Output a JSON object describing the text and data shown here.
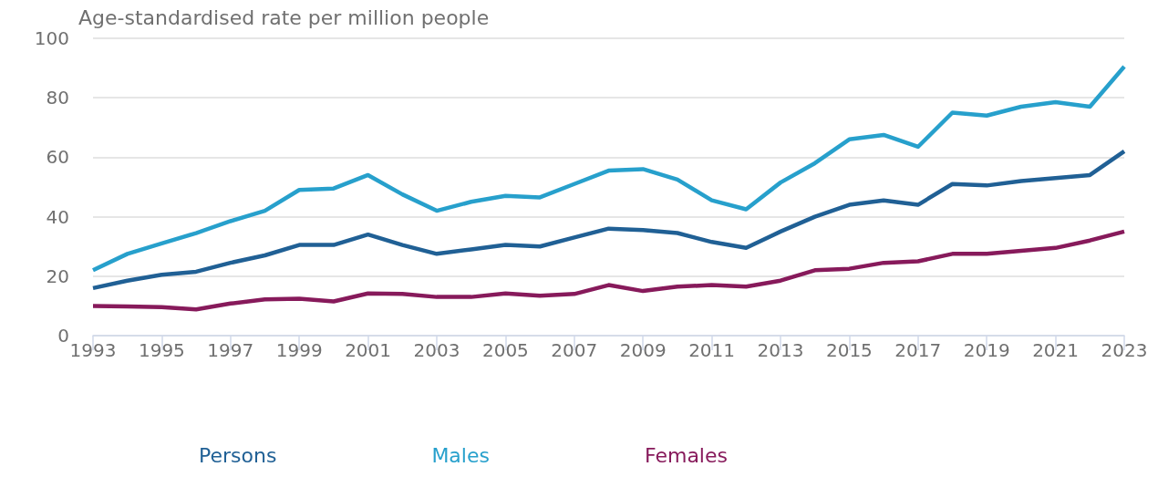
{
  "chart_data": {
    "type": "line",
    "ylabel": "Age-standardised rate per million people",
    "x": [
      1993,
      1994,
      1995,
      1996,
      1997,
      1998,
      1999,
      2000,
      2001,
      2002,
      2003,
      2004,
      2005,
      2006,
      2007,
      2008,
      2009,
      2010,
      2011,
      2012,
      2013,
      2014,
      2015,
      2016,
      2017,
      2018,
      2019,
      2020,
      2021,
      2022,
      2023
    ],
    "series": [
      {
        "name": "Persons",
        "color": "#206095",
        "values": [
          16,
          18.5,
          20.5,
          21.5,
          24.5,
          27,
          30.5,
          30.5,
          34,
          30.5,
          27.5,
          29,
          30.5,
          30,
          33,
          36,
          35.5,
          34.5,
          31.5,
          29.5,
          35,
          40,
          44,
          45.5,
          44,
          51,
          50.5,
          52,
          53,
          54,
          62
        ]
      },
      {
        "name": "Males",
        "color": "#27a0cc",
        "values": [
          22,
          27.5,
          31,
          34.5,
          38.5,
          42,
          49,
          49.5,
          54,
          47.5,
          42,
          45,
          47,
          46.5,
          51,
          55.5,
          56,
          52.5,
          45.5,
          42.5,
          51.5,
          58,
          66,
          67.5,
          63.5,
          75,
          74,
          77,
          78.5,
          77,
          90.5
        ]
      },
      {
        "name": "Females",
        "color": "#871a5b",
        "values": [
          10,
          9.8,
          9.6,
          8.8,
          10.8,
          12.2,
          12.4,
          11.5,
          14.2,
          14,
          13,
          13,
          14.2,
          13.4,
          14,
          17,
          15,
          16.5,
          17,
          16.5,
          18.5,
          22,
          22.5,
          24.5,
          25,
          27.5,
          27.5,
          28.5,
          29.5,
          32,
          35
        ]
      }
    ],
    "xlim": [
      1993,
      2023
    ],
    "xticks": [
      1993,
      1995,
      1997,
      1999,
      2001,
      2003,
      2005,
      2007,
      2009,
      2011,
      2013,
      2015,
      2017,
      2019,
      2021,
      2023
    ],
    "ylim": [
      0,
      100
    ],
    "yticks": [
      0,
      20,
      40,
      60,
      80,
      100
    ],
    "grid": "y",
    "legend": "bottom",
    "marker": "none",
    "line_style": "solid"
  }
}
